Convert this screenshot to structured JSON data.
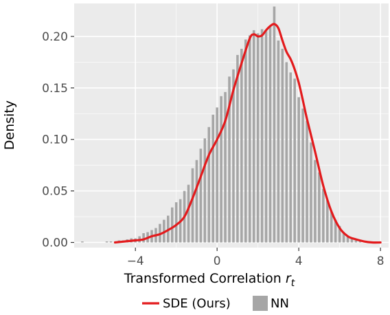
{
  "chart_data": {
    "type": "bar",
    "xlabel": "Transformed Correlation",
    "xlabel_subscript": "r",
    "xlabel_subscript_index": "t",
    "ylabel": "Density",
    "xlim": [
      -7.0,
      8.4
    ],
    "ylim": [
      -0.005,
      0.232
    ],
    "x_ticks": [
      -4,
      0,
      4,
      8
    ],
    "x_tick_labels": [
      "−4",
      "0",
      "4",
      "8"
    ],
    "y_ticks": [
      0.0,
      0.05,
      0.1,
      0.15,
      0.2
    ],
    "y_tick_labels": [
      "0.00",
      "0.05",
      "0.10",
      "0.15",
      "0.20"
    ],
    "grid": true,
    "legend_position": "bottom",
    "colors": {
      "panel": "#ebebeb",
      "grid": "#ffffff",
      "bars": "#a6a6a6",
      "sde_line": "#e31a1c"
    },
    "series": [
      {
        "name": "NN",
        "type": "histogram",
        "bin_width": 0.12,
        "x": [
          -6.6,
          -5.4,
          -5.2,
          -4.8,
          -4.6,
          -4.4,
          -4.2,
          -4.0,
          -3.8,
          -3.6,
          -3.4,
          -3.2,
          -3.0,
          -2.8,
          -2.6,
          -2.4,
          -2.2,
          -2.0,
          -1.8,
          -1.6,
          -1.4,
          -1.2,
          -1.0,
          -0.8,
          -0.6,
          -0.4,
          -0.2,
          0.0,
          0.2,
          0.4,
          0.6,
          0.8,
          1.0,
          1.2,
          1.4,
          1.6,
          1.8,
          2.0,
          2.2,
          2.4,
          2.6,
          2.8,
          3.0,
          3.2,
          3.4,
          3.6,
          3.8,
          4.0,
          4.2,
          4.4,
          4.6,
          4.8,
          5.0,
          5.2,
          5.4,
          5.6,
          5.8,
          6.0,
          6.2,
          6.4,
          6.6,
          6.8,
          7.0
        ],
        "values": [
          0.001,
          0.001,
          0.001,
          0.002,
          0.002,
          0.003,
          0.004,
          0.004,
          0.006,
          0.009,
          0.01,
          0.012,
          0.014,
          0.018,
          0.022,
          0.026,
          0.034,
          0.039,
          0.042,
          0.05,
          0.056,
          0.072,
          0.08,
          0.091,
          0.101,
          0.112,
          0.124,
          0.131,
          0.142,
          0.146,
          0.161,
          0.168,
          0.182,
          0.188,
          0.197,
          0.201,
          0.206,
          0.203,
          0.207,
          0.205,
          0.21,
          0.229,
          0.196,
          0.188,
          0.175,
          0.165,
          0.159,
          0.141,
          0.13,
          0.118,
          0.097,
          0.08,
          0.068,
          0.052,
          0.041,
          0.03,
          0.022,
          0.016,
          0.009,
          0.006,
          0.004,
          0.002,
          0.001
        ]
      },
      {
        "name": "SDE (Ours)",
        "type": "line",
        "x": [
          -5.0,
          -4.5,
          -4.0,
          -3.6,
          -3.2,
          -2.8,
          -2.4,
          -2.0,
          -1.6,
          -1.2,
          -0.8,
          -0.4,
          0.0,
          0.4,
          0.8,
          1.2,
          1.6,
          1.8,
          2.0,
          2.2,
          2.4,
          2.6,
          2.8,
          3.0,
          3.2,
          3.4,
          3.6,
          3.8,
          4.0,
          4.2,
          4.4,
          4.8,
          5.2,
          5.6,
          6.0,
          6.4,
          6.8,
          7.2,
          7.6,
          8.0
        ],
        "y": [
          0.0,
          0.001,
          0.002,
          0.003,
          0.006,
          0.008,
          0.012,
          0.017,
          0.025,
          0.043,
          0.064,
          0.085,
          0.1,
          0.118,
          0.148,
          0.174,
          0.198,
          0.202,
          0.2,
          0.201,
          0.206,
          0.21,
          0.212,
          0.208,
          0.196,
          0.185,
          0.178,
          0.168,
          0.155,
          0.138,
          0.12,
          0.088,
          0.055,
          0.03,
          0.014,
          0.006,
          0.003,
          0.001,
          0.0,
          0.0
        ]
      }
    ]
  }
}
